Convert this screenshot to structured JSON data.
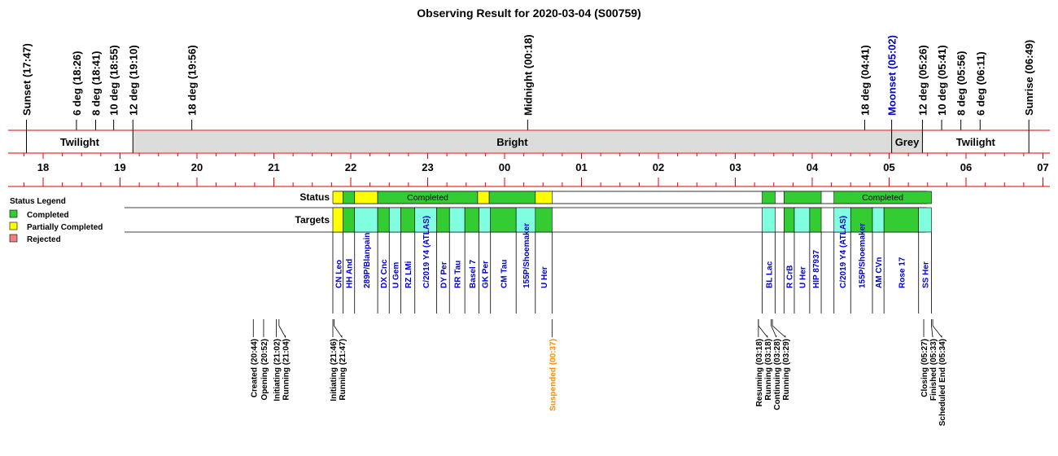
{
  "title": "Observing Result for 2020-03-04 (S00759)",
  "colors": {
    "red": "#e00000",
    "completed": "#33cc33",
    "partial": "#ffff00",
    "rejected": "#f08080",
    "target_fill": "#80ffe0",
    "bright": "#dcdcdc",
    "link": "#0000cc",
    "suspended": "#ff8c00"
  },
  "time_markers": [
    {
      "label": "Sunset (17:47)",
      "t": 17.783
    },
    {
      "label": "6 deg (18:26)",
      "t": 18.433
    },
    {
      "label": "8 deg (18:41)",
      "t": 18.683
    },
    {
      "label": "10 deg (18:55)",
      "t": 18.917
    },
    {
      "label": "12 deg (19:10)",
      "t": 19.167
    },
    {
      "label": "18 deg (19:56)",
      "t": 19.933
    },
    {
      "label": "Midnight (00:18)",
      "t": 24.3
    },
    {
      "label": "18 deg (04:41)",
      "t": 28.683
    },
    {
      "label": "Moonset (05:02)",
      "t": 29.033,
      "color": "link"
    },
    {
      "label": "12 deg (05:26)",
      "t": 29.433
    },
    {
      "label": "10 deg (05:41)",
      "t": 29.683
    },
    {
      "label": "8 deg (05:56)",
      "t": 29.933
    },
    {
      "label": "6 deg (06:11)",
      "t": 30.183
    },
    {
      "label": "Sunrise (06:49)",
      "t": 30.817
    }
  ],
  "sky_bands": [
    {
      "label": "Twilight",
      "start": 17.783,
      "end": 19.167,
      "fill": "#ffffff"
    },
    {
      "label": "Bright",
      "start": 19.167,
      "end": 29.033,
      "fill": "bright"
    },
    {
      "label": "Grey",
      "start": 29.033,
      "end": 29.433,
      "fill": "bright"
    },
    {
      "label": "Twilight",
      "start": 29.433,
      "end": 30.817,
      "fill": "#ffffff"
    }
  ],
  "hour_ticks": [
    "18",
    "19",
    "20",
    "21",
    "22",
    "23",
    "00",
    "01",
    "02",
    "03",
    "04",
    "05",
    "06",
    "07"
  ],
  "axis": {
    "start_hour": 17.6,
    "end_hour": 31.0
  },
  "legend": {
    "title": "Status Legend",
    "items": [
      {
        "label": "Completed",
        "color": "completed"
      },
      {
        "label": "Partially Completed",
        "color": "partial"
      },
      {
        "label": "Rejected",
        "color": "rejected"
      }
    ]
  },
  "row_labels": {
    "status": "Status",
    "targets": "Targets"
  },
  "status_segments": [
    {
      "start": 21.767,
      "end": 21.9,
      "status": "partial"
    },
    {
      "start": 21.9,
      "end": 22.05,
      "status": "completed"
    },
    {
      "start": 22.05,
      "end": 22.35,
      "status": "partial"
    },
    {
      "start": 22.35,
      "end": 23.65,
      "status": "completed",
      "label": "Completed"
    },
    {
      "start": 23.65,
      "end": 23.8,
      "status": "partial"
    },
    {
      "start": 23.8,
      "end": 24.4,
      "status": "completed"
    },
    {
      "start": 24.4,
      "end": 24.617,
      "status": "partial"
    },
    {
      "start": 27.35,
      "end": 27.517,
      "status": "completed"
    },
    {
      "start": 27.633,
      "end": 28.117,
      "status": "completed"
    },
    {
      "start": 28.283,
      "end": 29.55,
      "status": "completed",
      "label": "Completed"
    }
  ],
  "targets": [
    {
      "name": "CN Leo",
      "start": 21.767,
      "end": 21.9,
      "fill": "partial"
    },
    {
      "name": "HH And",
      "start": 21.9,
      "end": 22.05,
      "fill": "completed"
    },
    {
      "name": "289P/Blanpain",
      "start": 22.05,
      "end": 22.35,
      "fill": "target_fill"
    },
    {
      "name": "DX Cnc",
      "start": 22.35,
      "end": 22.5,
      "fill": "completed"
    },
    {
      "name": "U Gem",
      "start": 22.5,
      "end": 22.65,
      "fill": "target_fill"
    },
    {
      "name": "RZ LMi",
      "start": 22.65,
      "end": 22.833,
      "fill": "completed"
    },
    {
      "name": "C/2019 Y4 (ATLAS)",
      "start": 22.833,
      "end": 23.117,
      "fill": "target_fill"
    },
    {
      "name": "DY Per",
      "start": 23.117,
      "end": 23.283,
      "fill": "completed"
    },
    {
      "name": "RR Tau",
      "start": 23.283,
      "end": 23.483,
      "fill": "target_fill"
    },
    {
      "name": "Basel 7",
      "start": 23.483,
      "end": 23.667,
      "fill": "completed"
    },
    {
      "name": "GK Per",
      "start": 23.667,
      "end": 23.817,
      "fill": "target_fill"
    },
    {
      "name": "CM Tau",
      "start": 23.817,
      "end": 24.15,
      "fill": "completed"
    },
    {
      "name": "155P/Shoemaker",
      "start": 24.15,
      "end": 24.4,
      "fill": "target_fill"
    },
    {
      "name": "U Her",
      "start": 24.4,
      "end": 24.617,
      "fill": "completed"
    },
    {
      "name": "BL Lac",
      "start": 27.35,
      "end": 27.517,
      "fill": "target_fill"
    },
    {
      "name": "R CrB",
      "start": 27.633,
      "end": 27.767,
      "fill": "completed"
    },
    {
      "name": "U Her",
      "start": 27.767,
      "end": 27.967,
      "fill": "target_fill"
    },
    {
      "name": "HIP 87937",
      "start": 27.967,
      "end": 28.117,
      "fill": "completed"
    },
    {
      "name": "C/2019 Y4 (ATLAS)",
      "start": 28.283,
      "end": 28.5,
      "fill": "target_fill"
    },
    {
      "name": "155P/Shoemaker",
      "start": 28.5,
      "end": 28.783,
      "fill": "completed"
    },
    {
      "name": "AM CVn",
      "start": 28.783,
      "end": 28.933,
      "fill": "target_fill"
    },
    {
      "name": "Rose 17",
      "start": 28.933,
      "end": 29.383,
      "fill": "completed"
    },
    {
      "name": "SS Her",
      "start": 29.383,
      "end": 29.55,
      "fill": "target_fill"
    }
  ],
  "events": [
    {
      "label": "Created (20:44)",
      "t": 20.733
    },
    {
      "label": "Opening (20:52)",
      "t": 20.867
    },
    {
      "label": "Initiating (21:02)",
      "t": 21.033
    },
    {
      "label": "Running (21:04)",
      "t": 21.067
    },
    {
      "label": "Initiating (21:46)",
      "t": 21.767
    },
    {
      "label": "Running (21:47)",
      "t": 21.783
    },
    {
      "label": "Suspended (00:37)",
      "t": 24.617,
      "color": "suspended"
    },
    {
      "label": "Resuming (03:18)",
      "t": 27.3
    },
    {
      "label": "Running (03:18)",
      "t": 27.3
    },
    {
      "label": "Continuing (03:28)",
      "t": 27.467
    },
    {
      "label": "Running (03:29)",
      "t": 27.483
    },
    {
      "label": "Closing (05:27)",
      "t": 29.45
    },
    {
      "label": "Finished (05:33)",
      "t": 29.55
    },
    {
      "label": "Scheduled End (05:34)",
      "t": 29.567
    }
  ]
}
